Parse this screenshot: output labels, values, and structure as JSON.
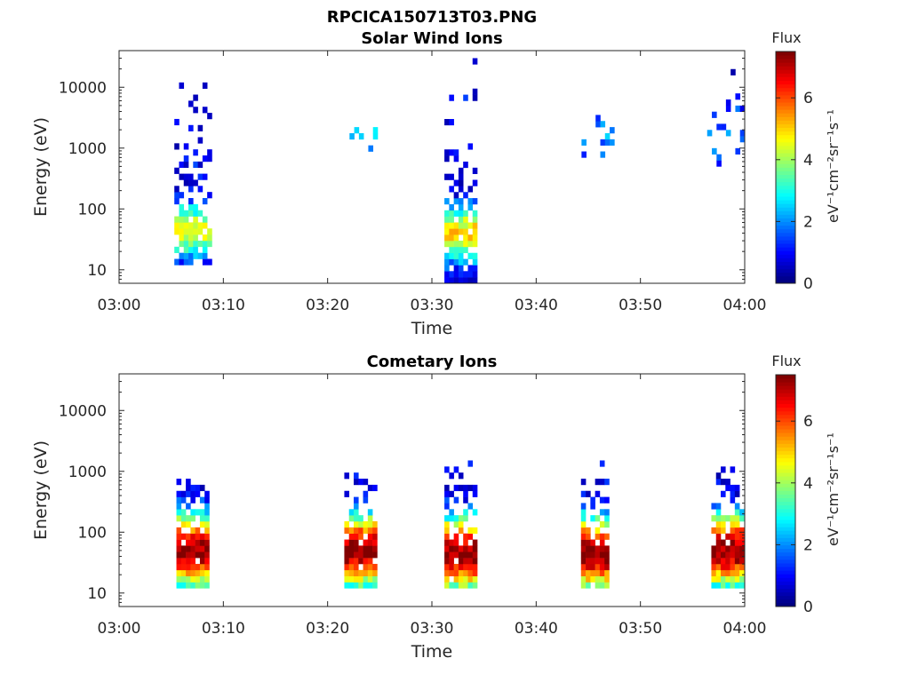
{
  "figure_title": "RPCICA150713T03.PNG",
  "colors": {
    "axis": "#262626",
    "colormap": [
      "#00007f",
      "#0000ff",
      "#007fff",
      "#00ffff",
      "#7fff7f",
      "#ffff00",
      "#ff7f00",
      "#ff0000",
      "#7f0000"
    ]
  },
  "chart_data": [
    {
      "type": "heatmap",
      "title": "Solar Wind Ions",
      "xlabel": "Time",
      "ylabel": "Energy (eV)",
      "x_ticks": [
        "03:00",
        "03:10",
        "03:20",
        "03:30",
        "03:40",
        "03:50",
        "04:00"
      ],
      "y_ticks": [
        "10",
        "100",
        "1000",
        "10000"
      ],
      "y_scale": "log",
      "ylim": [
        6,
        40000
      ],
      "xlim_minutes": [
        0,
        60
      ],
      "colorbar": {
        "title": "Flux",
        "label": "eV⁻¹cm⁻²sr⁻¹s⁻¹",
        "ticks": [
          "0",
          "2",
          "4",
          "6"
        ],
        "range": [
          0,
          7.5
        ]
      },
      "clusters": [
        {
          "t_start": 5.3,
          "t_end": 8.6,
          "e_min": 12,
          "e_max": 14000,
          "peak_flux": 4.5,
          "peak_energy": 40,
          "spread": 0.35,
          "density": 0.75
        },
        {
          "t_start": 22.1,
          "t_end": 25.0,
          "e_min": 700,
          "e_max": 3500,
          "peak_flux": 2.2,
          "peak_energy": 1500,
          "spread": 0.6,
          "density": 0.12
        },
        {
          "t_start": 31.2,
          "t_end": 34.3,
          "e_min": 6,
          "e_max": 35000,
          "peak_flux": 5.0,
          "peak_energy": 35,
          "spread": 0.35,
          "density": 0.75
        },
        {
          "t_start": 43.9,
          "t_end": 47.2,
          "e_min": 700,
          "e_max": 3000,
          "peak_flux": 2.0,
          "peak_energy": 1500,
          "spread": 0.5,
          "density": 0.12
        },
        {
          "t_start": 56.4,
          "t_end": 59.9,
          "e_min": 500,
          "e_max": 18000,
          "peak_flux": 1.8,
          "peak_energy": 1500,
          "spread": 0.5,
          "density": 0.12
        }
      ]
    },
    {
      "type": "heatmap",
      "title": "Cometary Ions",
      "xlabel": "Time",
      "ylabel": "Energy (eV)",
      "x_ticks": [
        "03:00",
        "03:10",
        "03:20",
        "03:30",
        "03:40",
        "03:50",
        "04:00"
      ],
      "y_ticks": [
        "10",
        "100",
        "1000",
        "10000"
      ],
      "y_scale": "log",
      "ylim": [
        6,
        40000
      ],
      "xlim_minutes": [
        0,
        60
      ],
      "colorbar": {
        "title": "Flux",
        "label": "eV⁻¹cm⁻²sr⁻¹s⁻¹",
        "ticks": [
          "0",
          "2",
          "4",
          "6"
        ],
        "range": [
          0,
          7.5
        ]
      },
      "clusters": [
        {
          "t_start": 5.5,
          "t_end": 8.6,
          "e_min": 12,
          "e_max": 650,
          "peak_flux": 7.4,
          "peak_energy": 45,
          "spread": 0.45,
          "density": 0.93
        },
        {
          "t_start": 21.6,
          "t_end": 24.7,
          "e_min": 12,
          "e_max": 800,
          "peak_flux": 7.4,
          "peak_energy": 45,
          "spread": 0.45,
          "density": 0.93
        },
        {
          "t_start": 31.2,
          "t_end": 34.2,
          "e_min": 12,
          "e_max": 1500,
          "peak_flux": 7.4,
          "peak_energy": 40,
          "spread": 0.45,
          "density": 0.93
        },
        {
          "t_start": 44.3,
          "t_end": 47.0,
          "e_min": 12,
          "e_max": 1300,
          "peak_flux": 7.4,
          "peak_energy": 40,
          "spread": 0.45,
          "density": 0.93
        },
        {
          "t_start": 56.8,
          "t_end": 59.9,
          "e_min": 12,
          "e_max": 1200,
          "peak_flux": 7.4,
          "peak_energy": 45,
          "spread": 0.45,
          "density": 0.93
        }
      ]
    }
  ]
}
